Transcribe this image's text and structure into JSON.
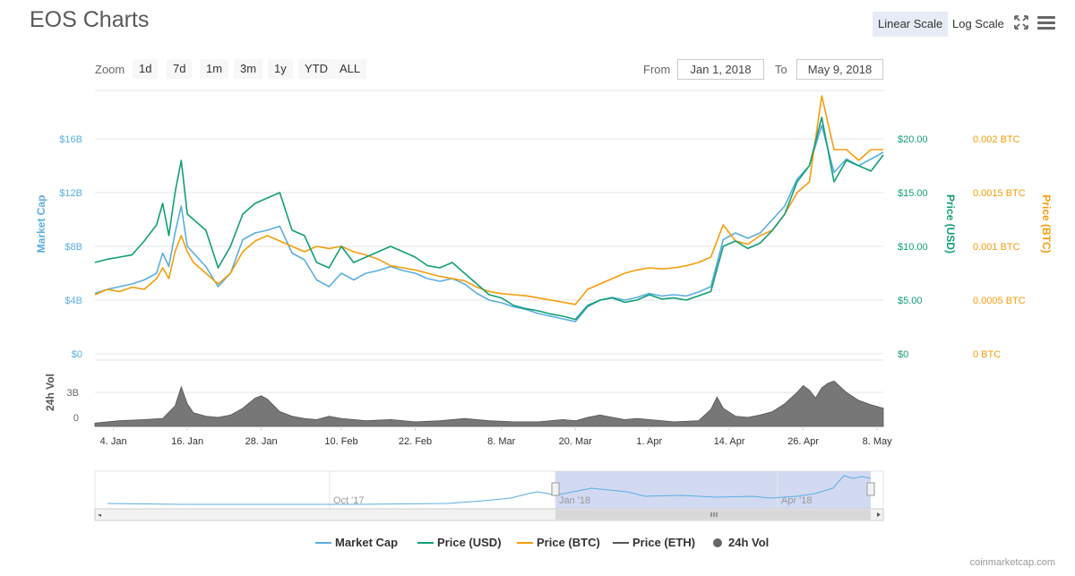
{
  "title": "EOS Charts",
  "scale": {
    "linear": "Linear Scale",
    "log": "Log Scale"
  },
  "icons": {
    "fullscreen": "fullscreen-icon",
    "menu": "hamburger-menu-icon"
  },
  "zoom": {
    "label": "Zoom",
    "buttons": [
      "1d",
      "7d",
      "1m",
      "3m",
      "1y",
      "YTD",
      "ALL"
    ]
  },
  "range": {
    "from_label": "From",
    "from_value": "Jan 1, 2018",
    "to_label": "To",
    "to_value": "May 9, 2018"
  },
  "legend": [
    {
      "name": "Market Cap",
      "color": "#5aaee0",
      "kind": "line"
    },
    {
      "name": "Price (USD)",
      "color": "#119f77",
      "kind": "line"
    },
    {
      "name": "Price (BTC)",
      "color": "#f59d0b",
      "kind": "line"
    },
    {
      "name": "Price (ETH)",
      "color": "#555555",
      "kind": "line"
    },
    {
      "name": "24h Vol",
      "color": "#666666",
      "kind": "dot"
    }
  ],
  "credit": "coinmarketcap.com",
  "navigator": {
    "labels": [
      "Oct '17",
      "Jan '18",
      "Apr '18"
    ]
  },
  "chart_data": {
    "type": "line",
    "x_tick_labels": [
      "4. Jan",
      "16. Jan",
      "28. Jan",
      "10. Feb",
      "22. Feb",
      "8. Mar",
      "20. Mar",
      "1. Apr",
      "14. Apr",
      "26. Apr",
      "8. May"
    ],
    "x_tick_days": [
      3,
      15,
      27,
      40,
      52,
      66,
      78,
      90,
      103,
      115,
      127
    ],
    "x_range_days": [
      0,
      128
    ],
    "axes": {
      "market_cap": {
        "label": "Market Cap",
        "ticks": [
          "$0",
          "$4B",
          "$8B",
          "$12B",
          "$16B"
        ],
        "max": 16,
        "color": "#5aaee0"
      },
      "price_usd": {
        "label": "Price (USD)",
        "ticks": [
          "$0",
          "$5.00",
          "$10.00",
          "$15.00",
          "$20.00"
        ],
        "max": 20,
        "color": "#119f77"
      },
      "price_btc": {
        "label": "Price (BTC)",
        "ticks": [
          "0 BTC",
          "0.0005 BTC",
          "0.001 BTC",
          "0.0015 BTC",
          "0.002 BTC"
        ],
        "max": 0.002,
        "color": "#f59d0b"
      },
      "volume": {
        "label": "24h Vol",
        "ticks": [
          "0",
          "3B"
        ],
        "max": 3
      }
    },
    "series": [
      {
        "name": "Price (USD)",
        "axis": "price_usd",
        "color": "#119f77",
        "x": [
          0,
          2,
          4,
          6,
          8,
          10,
          11,
          12,
          13,
          14,
          15,
          16,
          17,
          18,
          20,
          22,
          24,
          26,
          28,
          30,
          32,
          34,
          36,
          38,
          40,
          42,
          44,
          46,
          48,
          50,
          52,
          54,
          56,
          58,
          60,
          62,
          64,
          66,
          68,
          70,
          72,
          74,
          76,
          78,
          80,
          82,
          84,
          86,
          88,
          90,
          92,
          94,
          96,
          98,
          100,
          102,
          104,
          106,
          108,
          110,
          112,
          114,
          116,
          118,
          120,
          122,
          124,
          126,
          128
        ],
        "y": [
          8.5,
          8.8,
          9.0,
          9.2,
          10.5,
          12.0,
          14.0,
          11.0,
          15.0,
          18.0,
          13.0,
          12.5,
          12.0,
          11.5,
          8.0,
          10.0,
          13.0,
          14.0,
          14.5,
          15.0,
          11.5,
          11.0,
          8.5,
          8.0,
          10.0,
          8.5,
          9.0,
          9.5,
          10.0,
          9.5,
          9.0,
          8.2,
          8.0,
          8.5,
          7.5,
          6.5,
          5.5,
          5.2,
          4.5,
          4.2,
          4.0,
          3.7,
          3.5,
          3.2,
          4.5,
          5.0,
          5.2,
          4.8,
          5.0,
          5.5,
          5.1,
          5.2,
          5.0,
          5.4,
          5.8,
          10.0,
          10.5,
          9.8,
          10.3,
          11.5,
          13.0,
          16.0,
          17.5,
          22.0,
          16.0,
          18.0,
          17.5,
          17.0,
          18.5
        ]
      },
      {
        "name": "Market Cap",
        "axis": "market_cap",
        "color": "#5aaee0",
        "x": [
          0,
          2,
          4,
          6,
          8,
          10,
          11,
          12,
          13,
          14,
          15,
          16,
          17,
          18,
          20,
          22,
          24,
          26,
          28,
          30,
          32,
          34,
          36,
          38,
          40,
          42,
          44,
          46,
          48,
          50,
          52,
          54,
          56,
          58,
          60,
          62,
          64,
          66,
          68,
          70,
          72,
          74,
          76,
          78,
          80,
          82,
          84,
          86,
          88,
          90,
          92,
          94,
          96,
          98,
          100,
          102,
          104,
          106,
          108,
          110,
          112,
          114,
          116,
          118,
          120,
          122,
          124,
          126,
          128
        ],
        "y": [
          4.5,
          4.8,
          5.0,
          5.2,
          5.5,
          6.0,
          7.5,
          6.5,
          9.0,
          11.0,
          8.0,
          7.5,
          7.0,
          6.5,
          5.0,
          6.0,
          8.5,
          9.0,
          9.2,
          9.5,
          7.5,
          7.0,
          5.5,
          5.0,
          6.0,
          5.5,
          6.0,
          6.2,
          6.5,
          6.2,
          6.0,
          5.6,
          5.4,
          5.6,
          5.2,
          4.5,
          4.0,
          3.8,
          3.5,
          3.3,
          3.0,
          2.8,
          2.6,
          2.4,
          3.5,
          4.0,
          4.2,
          4.0,
          4.2,
          4.5,
          4.3,
          4.4,
          4.3,
          4.6,
          5.0,
          8.5,
          9.0,
          8.6,
          9.0,
          10.0,
          11.0,
          13.0,
          14.0,
          17.0,
          13.5,
          14.5,
          14.0,
          14.5,
          15.0
        ]
      },
      {
        "name": "Price (BTC)",
        "axis": "price_btc",
        "color": "#f59d0b",
        "x": [
          0,
          2,
          4,
          6,
          8,
          10,
          11,
          12,
          13,
          14,
          15,
          16,
          17,
          18,
          20,
          22,
          24,
          26,
          28,
          30,
          32,
          34,
          36,
          38,
          40,
          42,
          44,
          46,
          48,
          50,
          52,
          54,
          56,
          58,
          60,
          62,
          64,
          66,
          68,
          70,
          72,
          74,
          76,
          78,
          80,
          82,
          84,
          86,
          88,
          90,
          92,
          94,
          96,
          98,
          100,
          102,
          104,
          106,
          108,
          110,
          112,
          114,
          116,
          118,
          120,
          122,
          124,
          126,
          128
        ],
        "y": [
          0.00055,
          0.0006,
          0.00058,
          0.00062,
          0.0006,
          0.0007,
          0.0008,
          0.0007,
          0.00095,
          0.0011,
          0.00095,
          0.00085,
          0.0008,
          0.00075,
          0.00065,
          0.00075,
          0.00095,
          0.00105,
          0.0011,
          0.00105,
          0.001,
          0.00095,
          0.001,
          0.00098,
          0.001,
          0.00095,
          0.00092,
          0.00088,
          0.00082,
          0.0008,
          0.00078,
          0.00075,
          0.00072,
          0.0007,
          0.00068,
          0.00062,
          0.00058,
          0.00056,
          0.00055,
          0.00054,
          0.00052,
          0.0005,
          0.00048,
          0.00046,
          0.0006,
          0.00065,
          0.0007,
          0.00075,
          0.00078,
          0.0008,
          0.00079,
          0.0008,
          0.00082,
          0.00085,
          0.0009,
          0.0012,
          0.00105,
          0.00102,
          0.0011,
          0.00115,
          0.0013,
          0.0015,
          0.0016,
          0.0024,
          0.0019,
          0.0019,
          0.0018,
          0.0019,
          0.0019
        ]
      }
    ],
    "volume": {
      "x": [
        0,
        4,
        8,
        11,
        13,
        14,
        15,
        16,
        18,
        20,
        22,
        24,
        26,
        27,
        28,
        30,
        32,
        34,
        36,
        38,
        40,
        44,
        48,
        52,
        56,
        60,
        64,
        68,
        72,
        76,
        78,
        80,
        82,
        84,
        86,
        88,
        90,
        94,
        98,
        100,
        101,
        102,
        104,
        106,
        108,
        110,
        112,
        114,
        115,
        116,
        117,
        118,
        119,
        120,
        121,
        122,
        124,
        126,
        128
      ],
      "y": [
        0.3,
        0.5,
        0.6,
        0.7,
        1.8,
        3.5,
        2.0,
        1.2,
        0.9,
        0.8,
        1.0,
        1.6,
        2.5,
        2.7,
        2.4,
        1.3,
        0.9,
        0.7,
        0.6,
        0.9,
        0.7,
        0.5,
        0.6,
        0.4,
        0.5,
        0.7,
        0.5,
        0.4,
        0.4,
        0.6,
        0.5,
        0.8,
        1.0,
        0.8,
        0.6,
        0.7,
        0.6,
        0.4,
        0.5,
        1.5,
        2.6,
        1.6,
        0.9,
        0.8,
        1.0,
        1.3,
        2.0,
        3.0,
        3.6,
        3.2,
        2.5,
        3.4,
        3.8,
        4.0,
        3.5,
        3.0,
        2.3,
        1.9,
        1.6
      ]
    }
  }
}
